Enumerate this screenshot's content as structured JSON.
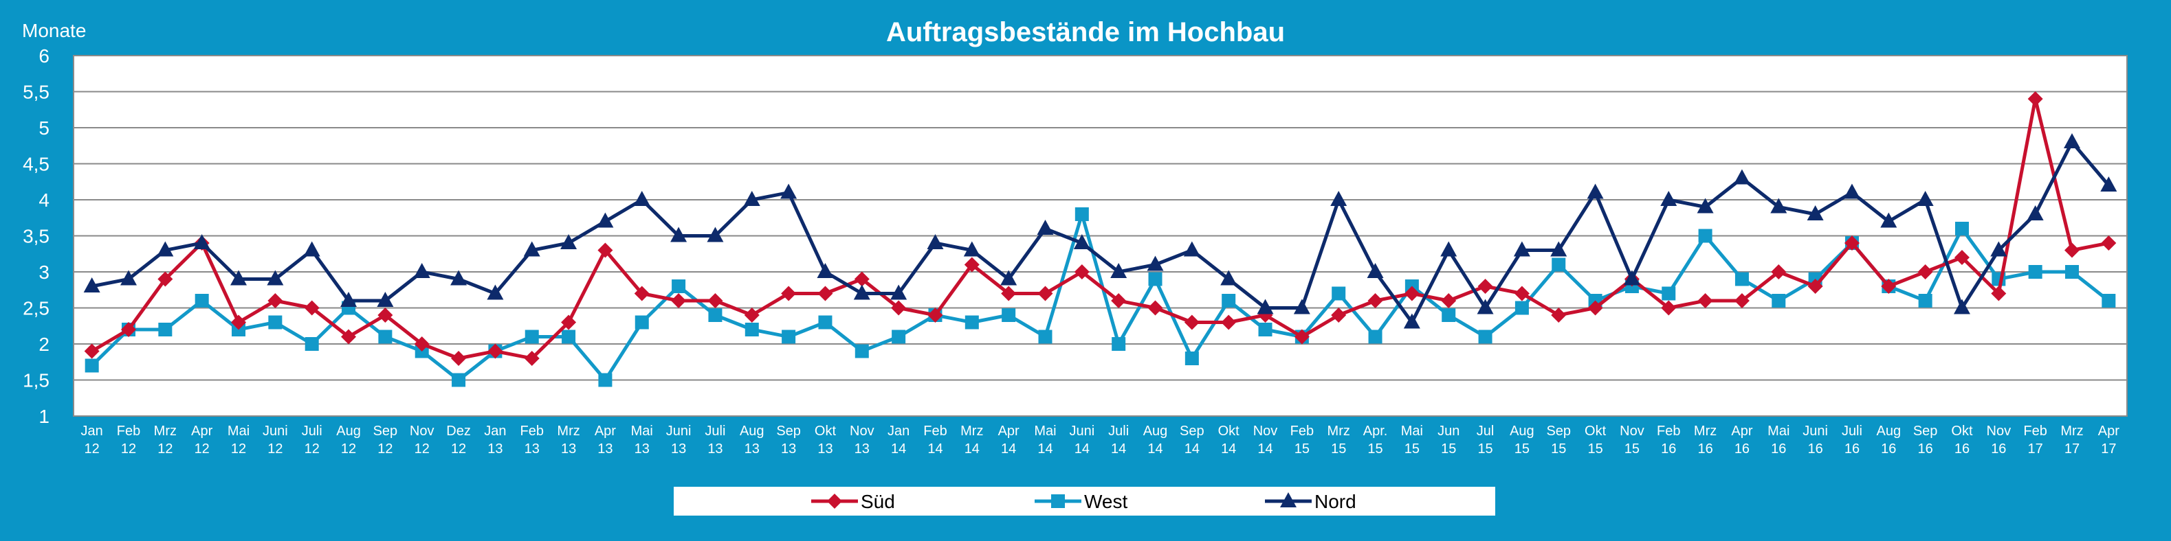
{
  "chart_data": {
    "type": "line",
    "title": "Auftragsbestände im Hochbau",
    "ylabel": "Monate",
    "xlabel": "",
    "ylim": [
      1,
      6
    ],
    "yticks": [
      "1",
      "1,5",
      "2",
      "2,5",
      "3",
      "3,5",
      "4",
      "4,5",
      "5",
      "5,5",
      "6"
    ],
    "grid": true,
    "legend_position": "bottom",
    "categories": [
      [
        "Jan",
        "12"
      ],
      [
        "Feb",
        "12"
      ],
      [
        "Mrz",
        "12"
      ],
      [
        "Apr",
        "12"
      ],
      [
        "Mai",
        "12"
      ],
      [
        "Juni",
        "12"
      ],
      [
        "Juli",
        "12"
      ],
      [
        "Aug",
        "12"
      ],
      [
        "Sep",
        "12"
      ],
      [
        "Nov",
        "12"
      ],
      [
        "Dez",
        "12"
      ],
      [
        "Jan",
        "13"
      ],
      [
        "Feb",
        "13"
      ],
      [
        "Mrz",
        "13"
      ],
      [
        "Apr",
        "13"
      ],
      [
        "Mai",
        "13"
      ],
      [
        "Juni",
        "13"
      ],
      [
        "Juli",
        "13"
      ],
      [
        "Aug",
        "13"
      ],
      [
        "Sep",
        "13"
      ],
      [
        "Okt",
        "13"
      ],
      [
        "Nov",
        "13"
      ],
      [
        "Jan",
        "14"
      ],
      [
        "Feb",
        "14"
      ],
      [
        "Mrz",
        "14"
      ],
      [
        "Apr",
        "14"
      ],
      [
        "Mai",
        "14"
      ],
      [
        "Juni",
        "14"
      ],
      [
        "Juli",
        "14"
      ],
      [
        "Aug",
        "14"
      ],
      [
        "Sep",
        "14"
      ],
      [
        "Okt",
        "14"
      ],
      [
        "Nov",
        "14"
      ],
      [
        "Feb",
        "15"
      ],
      [
        "Mrz",
        "15"
      ],
      [
        "Apr.",
        "15"
      ],
      [
        "Mai",
        "15"
      ],
      [
        "Jun",
        "15"
      ],
      [
        "Jul",
        "15"
      ],
      [
        "Aug",
        "15"
      ],
      [
        "Sep",
        "15"
      ],
      [
        "Okt",
        "15"
      ],
      [
        "Nov",
        "15"
      ],
      [
        "Feb",
        "16"
      ],
      [
        "Mrz",
        "16"
      ],
      [
        "Apr",
        "16"
      ],
      [
        "Mai",
        "16"
      ],
      [
        "Juni",
        "16"
      ],
      [
        "Juli",
        "16"
      ],
      [
        "Aug",
        "16"
      ],
      [
        "Sep",
        "16"
      ],
      [
        "Okt",
        "16"
      ],
      [
        "Nov",
        "16"
      ],
      [
        "Feb",
        "17"
      ],
      [
        "Mrz",
        "17"
      ],
      [
        "Apr",
        "17"
      ]
    ],
    "series": [
      {
        "name": "Süd",
        "color": "#c8102e",
        "marker": "diamond",
        "values": [
          1.9,
          2.2,
          2.9,
          3.4,
          2.3,
          2.6,
          2.5,
          2.1,
          2.4,
          2.0,
          1.8,
          1.9,
          1.8,
          2.3,
          3.3,
          2.7,
          2.6,
          2.6,
          2.4,
          2.7,
          2.7,
          2.9,
          2.5,
          2.4,
          3.1,
          2.7,
          2.7,
          3.0,
          2.6,
          2.5,
          2.3,
          2.3,
          2.4,
          2.1,
          2.4,
          2.6,
          2.7,
          2.6,
          2.8,
          2.7,
          2.4,
          2.5,
          2.9,
          2.5,
          2.6,
          2.6,
          3.0,
          2.8,
          3.4,
          2.8,
          3.0,
          3.2,
          2.7,
          5.4,
          3.3,
          3.4
        ]
      },
      {
        "name": "West",
        "color": "#1299c9",
        "marker": "square",
        "values": [
          1.7,
          2.2,
          2.2,
          2.6,
          2.2,
          2.3,
          2.0,
          2.5,
          2.1,
          1.9,
          1.5,
          1.9,
          2.1,
          2.1,
          1.5,
          2.3,
          2.8,
          2.4,
          2.2,
          2.1,
          2.3,
          1.9,
          2.1,
          2.4,
          2.3,
          2.4,
          2.1,
          3.8,
          2.0,
          2.9,
          1.8,
          2.6,
          2.2,
          2.1,
          2.7,
          2.1,
          2.8,
          2.4,
          2.1,
          2.5,
          3.1,
          2.6,
          2.8,
          2.7,
          3.5,
          2.9,
          2.6,
          2.9,
          3.4,
          2.8,
          2.6,
          3.6,
          2.9,
          3.0,
          3.0,
          2.6
        ]
      },
      {
        "name": "Nord",
        "color": "#0d2a6b",
        "marker": "triangle",
        "values": [
          2.8,
          2.9,
          3.3,
          3.4,
          2.9,
          2.9,
          3.3,
          2.6,
          2.6,
          3.0,
          2.9,
          2.7,
          3.3,
          3.4,
          3.7,
          4.0,
          3.5,
          3.5,
          4.0,
          4.1,
          3.0,
          2.7,
          2.7,
          3.4,
          3.3,
          2.9,
          3.6,
          3.4,
          3.0,
          3.1,
          3.3,
          2.9,
          2.5,
          2.5,
          4.0,
          3.0,
          2.3,
          3.3,
          2.5,
          3.3,
          3.3,
          4.1,
          2.9,
          4.0,
          3.9,
          4.3,
          3.9,
          3.8,
          4.1,
          3.7,
          4.0,
          2.5,
          3.3,
          3.8,
          4.8,
          4.2
        ]
      }
    ]
  }
}
